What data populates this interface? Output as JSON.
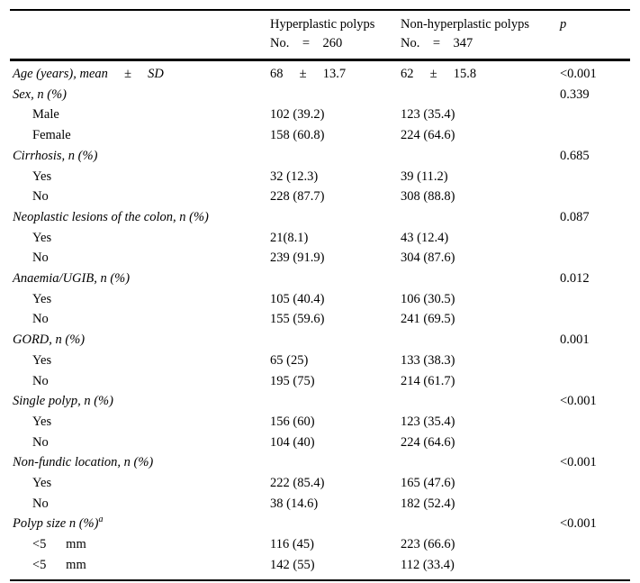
{
  "table": {
    "columns": [
      {
        "label": "",
        "sublabel": ""
      },
      {
        "label": "Hyperplastic polyps",
        "sublabel": "No.    =    260"
      },
      {
        "label": "Non-hyperplastic polyps",
        "sublabel": "No.    =    347"
      },
      {
        "label": "p",
        "sublabel": ""
      }
    ],
    "rows": [
      {
        "label": "Age (years), mean     ±     SD",
        "italic": true,
        "indent": false,
        "col1": "68     ±     13.7",
        "col2": "62     ±     15.8",
        "p": "<0.001"
      },
      {
        "label": "Sex, n (%)",
        "italic": true,
        "indent": false,
        "col1": "",
        "col2": "",
        "p": "0.339"
      },
      {
        "label": "Male",
        "italic": false,
        "indent": true,
        "col1": "102 (39.2)",
        "col2": "123 (35.4)",
        "p": ""
      },
      {
        "label": "Female",
        "italic": false,
        "indent": true,
        "col1": "158 (60.8)",
        "col2": "224 (64.6)",
        "p": ""
      },
      {
        "label": "Cirrhosis, n (%)",
        "italic": true,
        "indent": false,
        "col1": "",
        "col2": "",
        "p": "0.685"
      },
      {
        "label": "Yes",
        "italic": false,
        "indent": true,
        "col1": "32 (12.3)",
        "col2": "39 (11.2)",
        "p": ""
      },
      {
        "label": "No",
        "italic": false,
        "indent": true,
        "col1": "228 (87.7)",
        "col2": "308 (88.8)",
        "p": ""
      },
      {
        "label": "Neoplastic lesions of the colon, n (%)",
        "italic": true,
        "indent": false,
        "col1": "",
        "col2": "",
        "p": "0.087"
      },
      {
        "label": "Yes",
        "italic": false,
        "indent": true,
        "col1": "21(8.1)",
        "col2": "43 (12.4)",
        "p": ""
      },
      {
        "label": "No",
        "italic": false,
        "indent": true,
        "col1": "239 (91.9)",
        "col2": "304 (87.6)",
        "p": ""
      },
      {
        "label": "Anaemia/UGIB, n (%)",
        "italic": true,
        "indent": false,
        "col1": "",
        "col2": "",
        "p": "0.012"
      },
      {
        "label": "Yes",
        "italic": false,
        "indent": true,
        "col1": "105 (40.4)",
        "col2": "106 (30.5)",
        "p": ""
      },
      {
        "label": "No",
        "italic": false,
        "indent": true,
        "col1": "155 (59.6)",
        "col2": "241 (69.5)",
        "p": ""
      },
      {
        "label": "GORD, n (%)",
        "italic": true,
        "indent": false,
        "col1": "",
        "col2": "",
        "p": "0.001"
      },
      {
        "label": "Yes",
        "italic": false,
        "indent": true,
        "col1": "65 (25)",
        "col2": "133 (38.3)",
        "p": ""
      },
      {
        "label": "No",
        "italic": false,
        "indent": true,
        "col1": "195 (75)",
        "col2": "214 (61.7)",
        "p": ""
      },
      {
        "label": "Single polyp, n (%)",
        "italic": true,
        "indent": false,
        "col1": "",
        "col2": "",
        "p": "<0.001"
      },
      {
        "label": "Yes",
        "italic": false,
        "indent": true,
        "col1": "156 (60)",
        "col2": "123 (35.4)",
        "p": ""
      },
      {
        "label": "No",
        "italic": false,
        "indent": true,
        "col1": "104 (40)",
        "col2": "224 (64.6)",
        "p": ""
      },
      {
        "label": "Non-fundic location, n (%)",
        "italic": true,
        "indent": false,
        "col1": "",
        "col2": "",
        "p": "<0.001"
      },
      {
        "label": "Yes",
        "italic": false,
        "indent": true,
        "col1": "222 (85.4)",
        "col2": "165 (47.6)",
        "p": ""
      },
      {
        "label": "No",
        "italic": false,
        "indent": true,
        "col1": "38 (14.6)",
        "col2": "182 (52.4)",
        "p": ""
      },
      {
        "label": "Polyp size n (%)",
        "sup": "a",
        "italic": true,
        "indent": false,
        "col1": "",
        "col2": "",
        "p": "<0.001"
      },
      {
        "label": "<5      mm",
        "italic": false,
        "indent": true,
        "col1": "116 (45)",
        "col2": "223 (66.6)",
        "p": ""
      },
      {
        "label": "<5      mm",
        "italic": false,
        "indent": true,
        "col1": "142 (55)",
        "col2": "112 (33.4)",
        "p": ""
      }
    ]
  }
}
